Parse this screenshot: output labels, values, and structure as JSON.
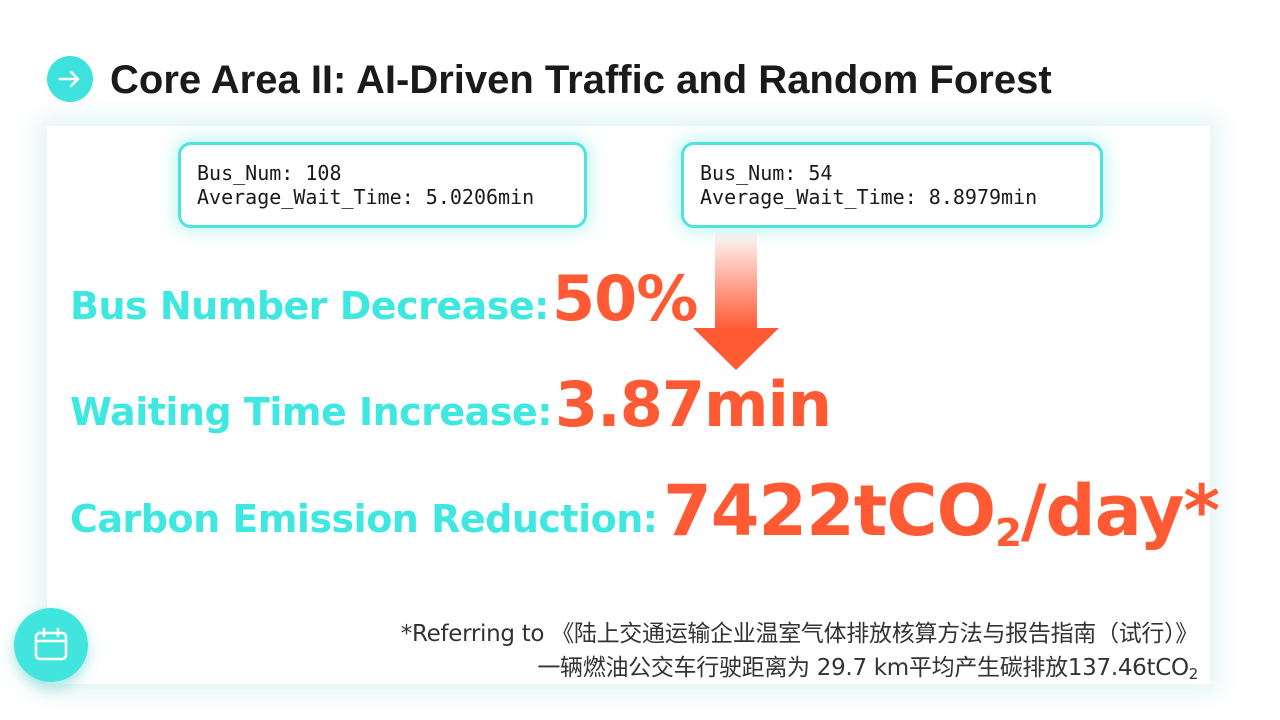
{
  "slide": {
    "title": "Core Area II: AI-Driven Traffic and Random Forest",
    "title_icon": "arrow-right-icon"
  },
  "colors": {
    "accent_cyan": "#3ee8e0",
    "accent_orange": "#ff5a33",
    "text_dark": "#1a1a1a"
  },
  "scenarios": [
    {
      "bus_num": "Bus_Num: 108",
      "wait_time": "Average_Wait_Time: 5.0206min"
    },
    {
      "bus_num": "Bus_Num: 54",
      "wait_time": "Average_Wait_Time: 8.8979min"
    }
  ],
  "metrics": {
    "bus_decrease": {
      "label": "Bus Number Decrease:",
      "value": "50%"
    },
    "wait_increase": {
      "label": "Waiting Time Increase:",
      "value": "3.87min"
    },
    "carbon_reduction": {
      "label": "Carbon Emission Reduction:",
      "value_prefix": "7422tCO",
      "value_sub": "2",
      "value_suffix": "/day*"
    }
  },
  "footnote": {
    "line1": "*Referring to 《陆上交通运输企业温室气体排放核算方法与报告指南（试行）》",
    "line2_prefix": "一辆燃油公交车行驶距离为 29.7 km平均产生碳排放137.46tCO",
    "line2_sub": "2"
  },
  "calendar_button": {
    "icon": "calendar-icon"
  }
}
